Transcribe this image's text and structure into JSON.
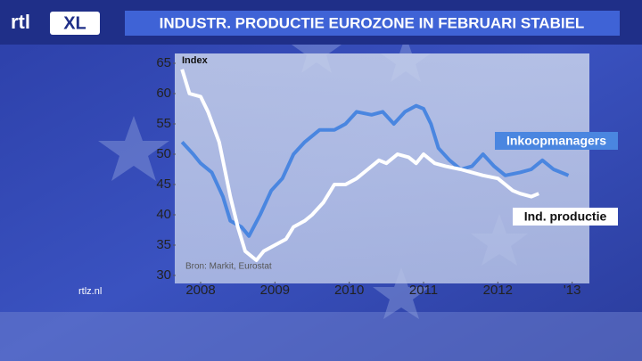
{
  "brand": {
    "logo": "rtl",
    "logo_badge": "XL",
    "site": "rtlz.nl"
  },
  "chart_data": {
    "type": "line",
    "title": "INDUSTR. PRODUCTIE EUROZONE IN FEBRUARI STABIEL",
    "y_label": "Index",
    "source": "Bron: Markit, Eurostat",
    "xlim": [
      2007.7,
      2013.1
    ],
    "xticks": [
      2008,
      2009,
      2010,
      2011,
      2012,
      {
        "value": 2013,
        "label": "'13"
      }
    ],
    "ylim": [
      30,
      65
    ],
    "yticks": [
      30,
      35,
      40,
      45,
      50,
      55,
      60,
      65
    ],
    "grid": false,
    "series": [
      {
        "name": "Inkoopmanagers",
        "color": "#4a86e0",
        "x": [
          2007.75,
          2007.9,
          2008.0,
          2008.15,
          2008.3,
          2008.4,
          2008.55,
          2008.65,
          2008.8,
          2008.95,
          2009.1,
          2009.25,
          2009.4,
          2009.6,
          2009.8,
          2009.95,
          2010.1,
          2010.3,
          2010.45,
          2010.6,
          2010.75,
          2010.9,
          2011.0,
          2011.1,
          2011.2,
          2011.35,
          2011.5,
          2011.65,
          2011.8,
          2011.95,
          2012.1,
          2012.3,
          2012.45,
          2012.6,
          2012.75,
          2012.95
        ],
        "values": [
          52,
          50,
          48.5,
          47,
          43,
          39,
          38,
          36.5,
          40,
          44,
          46,
          50,
          52,
          54,
          54,
          55,
          57,
          56.5,
          57,
          55,
          57,
          58,
          57.5,
          55,
          51,
          49,
          47.5,
          48,
          50,
          48,
          46.5,
          47,
          47.5,
          49,
          47.5,
          46.5
        ]
      },
      {
        "name": "Ind. productie",
        "color": "#ffffff",
        "x": [
          2007.75,
          2007.85,
          2008.0,
          2008.1,
          2008.25,
          2008.4,
          2008.5,
          2008.6,
          2008.75,
          2008.85,
          2009.0,
          2009.15,
          2009.25,
          2009.4,
          2009.5,
          2009.65,
          2009.8,
          2009.95,
          2010.1,
          2010.25,
          2010.4,
          2010.5,
          2010.65,
          2010.8,
          2010.9,
          2011.0,
          2011.15,
          2011.3,
          2011.5,
          2011.65,
          2011.8,
          2012.0,
          2012.1,
          2012.2,
          2012.3,
          2012.45,
          2012.55
        ],
        "values": [
          64,
          60,
          59.5,
          57,
          52,
          43,
          38,
          34,
          32.5,
          34,
          35,
          36,
          38,
          39,
          40,
          42,
          45,
          45,
          46,
          47.5,
          49,
          48.5,
          50,
          49.5,
          48.5,
          50,
          48.5,
          48,
          47.5,
          47,
          46.5,
          46,
          45,
          44,
          43.5,
          43,
          43.5
        ]
      }
    ]
  }
}
